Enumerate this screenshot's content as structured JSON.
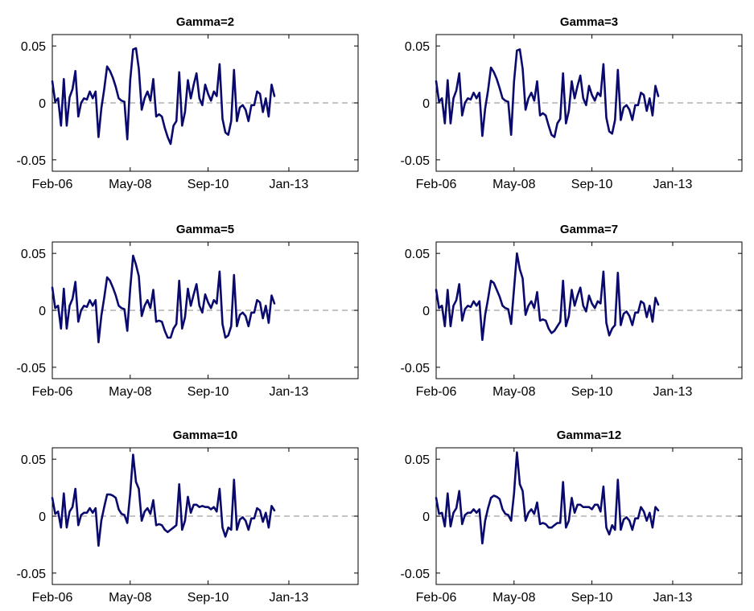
{
  "figure": {
    "line_color": "#0a0a6e",
    "zero_line_color": "#a0a0a0",
    "x_tick_labels": [
      "Feb-06",
      "May-08",
      "Sep-10",
      "Jan-13"
    ],
    "y_tick_labels": [
      "0.05",
      "0",
      "-0.05"
    ]
  },
  "chart_data": [
    {
      "type": "line",
      "title": "Gamma=2",
      "x_ticks": [
        "Feb-06",
        "May-08",
        "Sep-10",
        "Jan-13"
      ],
      "x_tick_index": [
        0,
        27,
        54,
        82
      ],
      "ylim": [
        -0.06,
        0.06
      ],
      "y_ticks": [
        0.05,
        0,
        -0.05
      ],
      "zero_line": "dashed",
      "grid": false,
      "series": [
        {
          "values": [
            0.019,
            0.001,
            0.004,
            -0.02,
            0.021,
            -0.02,
            0.005,
            0.012,
            0.028,
            -0.012,
            0.0,
            0.004,
            0.003,
            0.01,
            0.004,
            0.01,
            -0.03,
            -0.005,
            0.012,
            0.032,
            0.028,
            0.022,
            0.014,
            0.004,
            0.002,
            0.001,
            -0.032,
            0.02,
            0.047,
            0.048,
            0.03,
            -0.006,
            0.004,
            0.01,
            0.002,
            0.021,
            -0.012,
            -0.01,
            -0.012,
            -0.022,
            -0.03,
            -0.036,
            -0.02,
            -0.016,
            0.027,
            -0.02,
            -0.008,
            0.02,
            0.004,
            0.016,
            0.026,
            0.004,
            -0.002,
            0.016,
            0.008,
            0.002,
            0.01,
            0.006,
            0.034,
            -0.014,
            -0.026,
            -0.028,
            -0.016,
            0.029,
            -0.016,
            -0.004,
            -0.002,
            -0.006,
            -0.016,
            -0.002,
            -0.002,
            0.01,
            0.008,
            -0.008,
            0.004,
            -0.012,
            0.016,
            0.006
          ]
        }
      ]
    },
    {
      "type": "line",
      "title": "Gamma=3",
      "x_ticks": [
        "Feb-06",
        "May-08",
        "Sep-10",
        "Jan-13"
      ],
      "x_tick_index": [
        0,
        27,
        54,
        82
      ],
      "ylim": [
        -0.06,
        0.06
      ],
      "y_ticks": [
        0.05,
        0,
        -0.05
      ],
      "zero_line": "dashed",
      "grid": false,
      "series": [
        {
          "values": [
            0.019,
            0.001,
            0.004,
            -0.018,
            0.02,
            -0.018,
            0.004,
            0.011,
            0.026,
            -0.011,
            0.0,
            0.004,
            0.003,
            0.009,
            0.004,
            0.009,
            -0.029,
            -0.005,
            0.011,
            0.031,
            0.027,
            0.021,
            0.013,
            0.004,
            0.002,
            0.001,
            -0.028,
            0.019,
            0.046,
            0.047,
            0.03,
            -0.006,
            0.004,
            0.009,
            0.002,
            0.019,
            -0.011,
            -0.009,
            -0.011,
            -0.02,
            -0.028,
            -0.03,
            -0.018,
            -0.014,
            0.026,
            -0.018,
            -0.007,
            0.019,
            0.004,
            0.015,
            0.024,
            0.004,
            -0.002,
            0.015,
            0.007,
            0.002,
            0.009,
            0.006,
            0.034,
            -0.013,
            -0.025,
            -0.027,
            -0.015,
            0.029,
            -0.015,
            -0.004,
            -0.002,
            -0.006,
            -0.015,
            -0.002,
            -0.002,
            0.009,
            0.007,
            -0.007,
            0.004,
            -0.011,
            0.015,
            0.006
          ]
        }
      ]
    },
    {
      "type": "line",
      "title": "Gamma=5",
      "x_ticks": [
        "Feb-06",
        "May-08",
        "Sep-10",
        "Jan-13"
      ],
      "x_tick_index": [
        0,
        27,
        54,
        82
      ],
      "ylim": [
        -0.06,
        0.06
      ],
      "y_ticks": [
        0.05,
        0,
        -0.05
      ],
      "zero_line": "dashed",
      "grid": false,
      "series": [
        {
          "values": [
            0.02,
            0.002,
            0.004,
            -0.016,
            0.019,
            -0.016,
            0.004,
            0.01,
            0.025,
            -0.01,
            0.0,
            0.004,
            0.003,
            0.009,
            0.004,
            0.009,
            -0.028,
            -0.005,
            0.011,
            0.029,
            0.026,
            0.02,
            0.013,
            0.004,
            0.002,
            0.001,
            -0.018,
            0.019,
            0.048,
            0.04,
            0.03,
            -0.005,
            0.004,
            0.009,
            0.002,
            0.018,
            -0.01,
            -0.009,
            -0.01,
            -0.018,
            -0.024,
            -0.024,
            -0.016,
            -0.012,
            0.026,
            -0.016,
            -0.006,
            0.019,
            0.004,
            0.014,
            0.023,
            0.004,
            -0.002,
            0.014,
            0.007,
            0.002,
            0.009,
            0.006,
            0.034,
            -0.012,
            -0.024,
            -0.022,
            -0.014,
            0.031,
            -0.014,
            -0.004,
            -0.002,
            -0.005,
            -0.014,
            -0.002,
            -0.002,
            0.009,
            0.007,
            -0.007,
            0.004,
            -0.011,
            0.013,
            0.006
          ]
        }
      ]
    },
    {
      "type": "line",
      "title": "Gamma=7",
      "x_ticks": [
        "Feb-06",
        "May-08",
        "Sep-10",
        "Jan-13"
      ],
      "x_tick_index": [
        0,
        27,
        54,
        82
      ],
      "ylim": [
        -0.06,
        0.06
      ],
      "y_ticks": [
        0.05,
        0,
        -0.05
      ],
      "zero_line": "dashed",
      "grid": false,
      "series": [
        {
          "values": [
            0.018,
            0.002,
            0.004,
            -0.014,
            0.018,
            -0.014,
            0.004,
            0.009,
            0.023,
            -0.009,
            0.001,
            0.004,
            0.003,
            0.008,
            0.004,
            0.008,
            -0.026,
            -0.004,
            0.01,
            0.026,
            0.024,
            0.018,
            0.012,
            0.004,
            0.002,
            0.001,
            -0.012,
            0.019,
            0.05,
            0.036,
            0.028,
            -0.004,
            0.004,
            0.008,
            0.002,
            0.016,
            -0.009,
            -0.008,
            -0.009,
            -0.016,
            -0.02,
            -0.018,
            -0.014,
            -0.01,
            0.026,
            -0.014,
            -0.005,
            0.018,
            0.004,
            0.013,
            0.02,
            0.004,
            -0.001,
            0.013,
            0.006,
            0.002,
            0.008,
            0.006,
            0.034,
            -0.011,
            -0.022,
            -0.016,
            -0.013,
            0.033,
            -0.013,
            -0.003,
            -0.001,
            -0.005,
            -0.013,
            -0.002,
            -0.002,
            0.008,
            0.006,
            -0.006,
            0.004,
            -0.01,
            0.011,
            0.005
          ]
        }
      ]
    },
    {
      "type": "line",
      "title": "Gamma=10",
      "x_ticks": [
        "Feb-06",
        "May-08",
        "Sep-10",
        "Jan-13"
      ],
      "x_tick_index": [
        0,
        27,
        54,
        82
      ],
      "ylim": [
        -0.06,
        0.06
      ],
      "y_ticks": [
        0.05,
        0,
        -0.05
      ],
      "zero_line": "dashed",
      "grid": false,
      "series": [
        {
          "values": [
            0.016,
            0.002,
            0.004,
            -0.01,
            0.02,
            -0.01,
            0.004,
            0.008,
            0.024,
            -0.008,
            0.001,
            0.003,
            0.003,
            0.007,
            0.003,
            0.007,
            -0.026,
            -0.004,
            0.008,
            0.019,
            0.019,
            0.018,
            0.016,
            0.006,
            0.002,
            0.001,
            -0.006,
            0.02,
            0.054,
            0.03,
            0.024,
            -0.004,
            0.004,
            0.007,
            0.002,
            0.014,
            -0.008,
            -0.007,
            -0.008,
            -0.012,
            -0.014,
            -0.012,
            -0.01,
            -0.008,
            0.028,
            -0.012,
            -0.004,
            0.017,
            0.003,
            0.01,
            0.01,
            0.008,
            0.009,
            0.008,
            0.008,
            0.006,
            0.008,
            0.004,
            0.024,
            -0.01,
            -0.018,
            -0.01,
            -0.012,
            0.032,
            -0.012,
            -0.003,
            -0.001,
            -0.004,
            -0.012,
            -0.002,
            -0.002,
            0.007,
            0.005,
            -0.005,
            0.003,
            -0.01,
            0.009,
            0.005
          ]
        }
      ]
    },
    {
      "type": "line",
      "title": "Gamma=12",
      "x_ticks": [
        "Feb-06",
        "May-08",
        "Sep-10",
        "Jan-13"
      ],
      "x_tick_index": [
        0,
        27,
        54,
        82
      ],
      "ylim": [
        -0.06,
        0.06
      ],
      "y_ticks": [
        0.05,
        0,
        -0.05
      ],
      "zero_line": "dashed",
      "grid": false,
      "series": [
        {
          "values": [
            0.016,
            0.002,
            0.003,
            -0.009,
            0.02,
            -0.009,
            0.003,
            0.007,
            0.022,
            -0.007,
            0.001,
            0.003,
            0.003,
            0.006,
            0.003,
            0.006,
            -0.024,
            -0.004,
            0.007,
            0.016,
            0.018,
            0.017,
            0.015,
            0.006,
            0.002,
            0.001,
            -0.004,
            0.02,
            0.056,
            0.028,
            0.022,
            -0.004,
            0.003,
            0.006,
            0.002,
            0.012,
            -0.007,
            -0.006,
            -0.007,
            -0.01,
            -0.01,
            -0.008,
            -0.006,
            -0.006,
            0.03,
            -0.01,
            -0.004,
            0.016,
            0.003,
            0.01,
            0.01,
            0.008,
            0.008,
            0.008,
            0.006,
            0.01,
            0.01,
            0.004,
            0.026,
            -0.01,
            -0.016,
            -0.008,
            -0.012,
            0.032,
            -0.012,
            -0.003,
            -0.001,
            -0.004,
            -0.012,
            -0.002,
            -0.002,
            0.008,
            0.004,
            -0.004,
            0.003,
            -0.01,
            0.008,
            0.005
          ]
        }
      ]
    }
  ]
}
